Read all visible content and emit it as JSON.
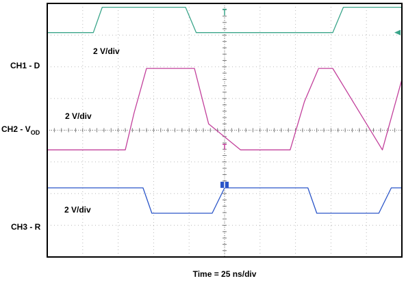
{
  "chart_data": {
    "type": "line",
    "title": "",
    "xlabel": "Time = 25 ns/div",
    "ylabel": "",
    "xlim": [
      0,
      10
    ],
    "ylim": [
      0,
      8
    ],
    "grid": true,
    "divisions": {
      "x": 10,
      "y": 8
    },
    "series": [
      {
        "name": "CH1 - D",
        "scale_label": "2 V/div",
        "color": "#3aa58a",
        "x": [
          0,
          1.3,
          1.55,
          3.9,
          4.2,
          8.05,
          8.35,
          10
        ],
        "y": [
          7.08,
          7.08,
          7.88,
          7.88,
          7.08,
          7.08,
          7.88,
          7.88
        ]
      },
      {
        "name_main": "CH2 - V",
        "name_sub": "OD",
        "scale_label": "2 V/div",
        "color": "#c23f9b",
        "x": [
          0,
          2.2,
          2.45,
          2.8,
          4.15,
          4.55,
          5.45,
          6.85,
          7.25,
          7.65,
          8.05,
          9.45,
          10
        ],
        "y": [
          3.38,
          3.38,
          4.55,
          5.95,
          5.95,
          4.2,
          3.38,
          3.38,
          4.9,
          5.95,
          5.95,
          3.38,
          5.6
        ]
      },
      {
        "name": "CH3 - R",
        "scale_label": "2 V/div",
        "color": "#2a55c8",
        "x": [
          0,
          2.7,
          2.95,
          4.65,
          5.0,
          7.35,
          7.6,
          9.35,
          9.7,
          10
        ],
        "y": [
          2.18,
          2.18,
          1.38,
          1.38,
          2.18,
          2.18,
          1.38,
          1.38,
          2.18,
          2.18
        ]
      }
    ]
  },
  "channel_labels": {
    "ch1": "CH1 - D",
    "ch2_main": "CH2 - V",
    "ch2_sub": "OD",
    "ch3": "CH3 - R"
  },
  "scale_labels": [
    "2 V/div",
    "2 V/div",
    "2 V/div"
  ]
}
